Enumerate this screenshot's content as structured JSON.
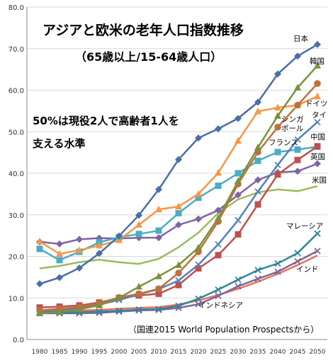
{
  "chart_data": {
    "type": "line",
    "title": "アジアと欧米の老年人口指数推移",
    "subtitle": "（65歳以上/15-64歳人口）",
    "annotation_line1": "50%は現役2人で高齢者1人を",
    "annotation_line2": "支える水準",
    "source": "（国連2015 World Population Prospectsから）",
    "ylim": [
      0,
      80
    ],
    "yticks": [
      "0.0",
      "10.0",
      "20.0",
      "30.0",
      "40.0",
      "50.0",
      "60.0",
      "70.0",
      "80.0"
    ],
    "x": [
      "1980",
      "1985",
      "1990",
      "1995",
      "2000",
      "2005",
      "2010",
      "2015",
      "2020",
      "2025",
      "2030",
      "2035",
      "2040",
      "2045",
      "2050"
    ],
    "grid": true,
    "series": [
      {
        "name": "日本",
        "color": "#4a6ea8",
        "marker": "diamond",
        "values": [
          13.4,
          14.9,
          17.2,
          20.7,
          24.9,
          29.9,
          36.1,
          43.3,
          48.5,
          50.7,
          53.2,
          57.1,
          63.9,
          68.2,
          71.0
        ]
      },
      {
        "name": "韓国",
        "color": "#77933c",
        "marker": "triangle",
        "values": [
          6.3,
          6.6,
          7.3,
          8.2,
          10.0,
          12.7,
          15.2,
          17.9,
          22.1,
          29.2,
          38.1,
          46.2,
          53.8,
          60.6,
          65.9
        ]
      },
      {
        "name": "ドイツ",
        "color": "#f79646",
        "marker": "triangle",
        "values": [
          23.6,
          20.6,
          21.5,
          22.6,
          23.9,
          27.6,
          31.3,
          32.0,
          35.0,
          40.1,
          47.8,
          54.9,
          55.8,
          56.4,
          58.5
        ]
      },
      {
        "name": "シンガポール",
        "color": "#c0703c",
        "marker": "circle",
        "values": [
          7.0,
          7.4,
          7.8,
          8.7,
          10.1,
          11.0,
          12.2,
          16.0,
          21.1,
          28.4,
          37.4,
          45.1,
          51.1,
          56.4,
          61.6
        ]
      },
      {
        "name": "タイ",
        "color": "#4f81bd",
        "marker": "x",
        "values": [
          6.8,
          7.1,
          7.6,
          8.4,
          9.5,
          10.9,
          12.1,
          14.2,
          18.0,
          22.9,
          28.7,
          35.6,
          42.0,
          48.1,
          52.3
        ]
      },
      {
        "name": "フランス",
        "color": "#4bacc6",
        "marker": "square",
        "values": [
          21.8,
          19.1,
          21.1,
          23.4,
          24.6,
          25.4,
          26.2,
          30.4,
          34.1,
          37.0,
          40.0,
          43.0,
          45.1,
          45.7,
          46.4
        ]
      },
      {
        "name": "中国",
        "color": "#c0504d",
        "marker": "square",
        "values": [
          7.7,
          7.9,
          8.2,
          8.9,
          10.0,
          10.6,
          11.0,
          13.1,
          17.1,
          20.3,
          25.3,
          32.5,
          39.7,
          43.2,
          46.5
        ]
      },
      {
        "name": "英国",
        "color": "#8064a2",
        "marker": "diamond",
        "values": [
          23.5,
          23.0,
          24.1,
          24.4,
          24.3,
          24.5,
          24.5,
          27.6,
          29.0,
          31.1,
          34.8,
          38.4,
          40.2,
          40.5,
          42.3
        ]
      },
      {
        "name": "米国",
        "color": "#9bbb59",
        "marker": "none",
        "values": [
          17.1,
          17.7,
          18.6,
          19.2,
          18.6,
          18.2,
          19.4,
          22.2,
          25.7,
          30.4,
          33.7,
          35.4,
          36.1,
          35.7,
          36.9
        ]
      },
      {
        "name": "マレーシア",
        "color": "#31859c",
        "marker": "x",
        "values": [
          6.6,
          6.5,
          6.6,
          6.7,
          6.9,
          7.2,
          7.3,
          8.1,
          9.8,
          12.0,
          14.4,
          16.7,
          18.3,
          20.8,
          25.5
        ]
      },
      {
        "name": "インド",
        "color": "#e6735a",
        "marker": "none",
        "values": [
          6.7,
          6.9,
          7.0,
          7.1,
          7.4,
          7.6,
          7.8,
          8.4,
          9.4,
          10.7,
          12.2,
          13.9,
          15.8,
          17.9,
          20.2
        ]
      },
      {
        "name": "インドネシア",
        "color": "#7f6699",
        "marker": "x",
        "values": [
          6.3,
          6.3,
          6.3,
          6.4,
          6.7,
          7.0,
          7.1,
          7.6,
          8.5,
          10.5,
          12.8,
          14.6,
          16.3,
          18.8,
          21.3
        ]
      }
    ]
  }
}
